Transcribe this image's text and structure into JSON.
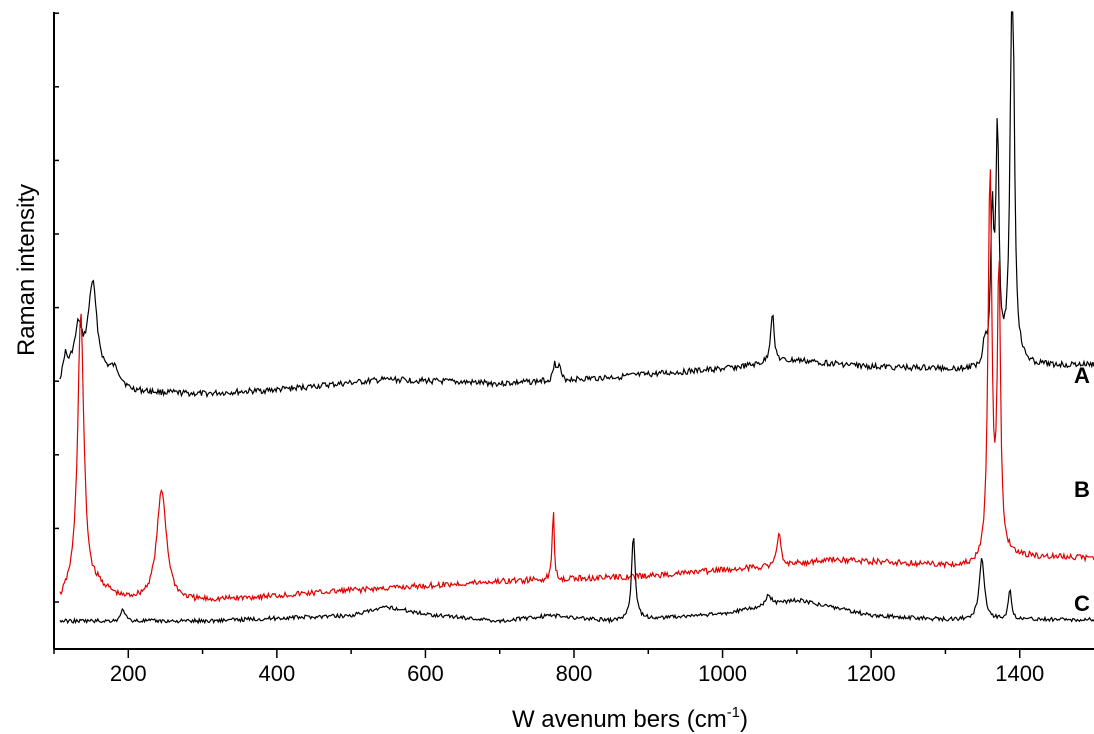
{
  "chart_data": {
    "type": "line",
    "title": "",
    "xlabel": "Wavenumbers (cm-1)",
    "xlabel_main": "W avenum bers (cm",
    "xlabel_sup": "-1",
    "xlabel_close": ")",
    "ylabel": "Raman intensity",
    "xlim": [
      100,
      1500
    ],
    "x_ticks": [
      200,
      400,
      600,
      800,
      1000,
      1200,
      1400
    ],
    "y_ticks_numbered": false,
    "grid": false,
    "legend": "none",
    "series": [
      {
        "name": "A",
        "color": "#000000",
        "baseline": [
          [
            108,
            0.34
          ],
          [
            125,
            0.42
          ],
          [
            140,
            0.4
          ],
          [
            200,
            0.3
          ],
          [
            300,
            0.29
          ],
          [
            400,
            0.31
          ],
          [
            550,
            0.36
          ],
          [
            700,
            0.34
          ],
          [
            850,
            0.37
          ],
          [
            1000,
            0.41
          ],
          [
            1100,
            0.45
          ],
          [
            1200,
            0.42
          ],
          [
            1300,
            0.41
          ],
          [
            1340,
            0.4
          ],
          [
            1400,
            0.42
          ],
          [
            1500,
            0.43
          ]
        ],
        "peaks": [
          [
            115,
            0.09,
            3
          ],
          [
            133,
            0.18,
            5
          ],
          [
            152,
            0.43,
            7
          ],
          [
            182,
            0.07,
            10
          ],
          [
            774,
            0.1,
            2
          ],
          [
            780,
            0.07,
            2
          ],
          [
            1067,
            0.24,
            3
          ],
          [
            1353,
            0.1,
            3
          ],
          [
            1363,
            0.7,
            2.5
          ],
          [
            1370,
            1.1,
            2.5
          ],
          [
            1390,
            2.1,
            3
          ]
        ]
      },
      {
        "name": "B",
        "color": "#e00000",
        "baseline": [
          [
            108,
            0.0
          ],
          [
            120,
            0.05
          ],
          [
            160,
            0.08
          ],
          [
            190,
            0.02
          ],
          [
            250,
            0.0
          ],
          [
            300,
            0.01
          ],
          [
            500,
            0.07
          ],
          [
            700,
            0.12
          ],
          [
            900,
            0.15
          ],
          [
            1050,
            0.2
          ],
          [
            1150,
            0.24
          ],
          [
            1300,
            0.21
          ],
          [
            1340,
            0.2
          ],
          [
            1380,
            0.26
          ],
          [
            1500,
            0.25
          ]
        ],
        "peaks": [
          [
            136,
            1.55,
            5
          ],
          [
            245,
            0.62,
            8
          ],
          [
            772,
            0.42,
            1.5
          ],
          [
            1076,
            0.17,
            3
          ],
          [
            1360,
            2.15,
            3
          ],
          [
            1372,
            1.6,
            2.5
          ]
        ]
      },
      {
        "name": "C",
        "color": "#000000",
        "baseline": [
          [
            108,
            0.0
          ],
          [
            300,
            0.0
          ],
          [
            500,
            0.04
          ],
          [
            550,
            0.1
          ],
          [
            600,
            0.05
          ],
          [
            700,
            0.0
          ],
          [
            770,
            0.04
          ],
          [
            850,
            0.0
          ],
          [
            1000,
            0.05
          ],
          [
            1100,
            0.15
          ],
          [
            1200,
            0.04
          ],
          [
            1300,
            0.01
          ],
          [
            1500,
            0.01
          ]
        ],
        "peaks": [
          [
            193,
            0.09,
            3
          ],
          [
            880,
            0.6,
            3
          ],
          [
            1062,
            0.07,
            5
          ],
          [
            1349,
            0.45,
            4
          ],
          [
            1387,
            0.22,
            2.5
          ]
        ]
      }
    ]
  }
}
